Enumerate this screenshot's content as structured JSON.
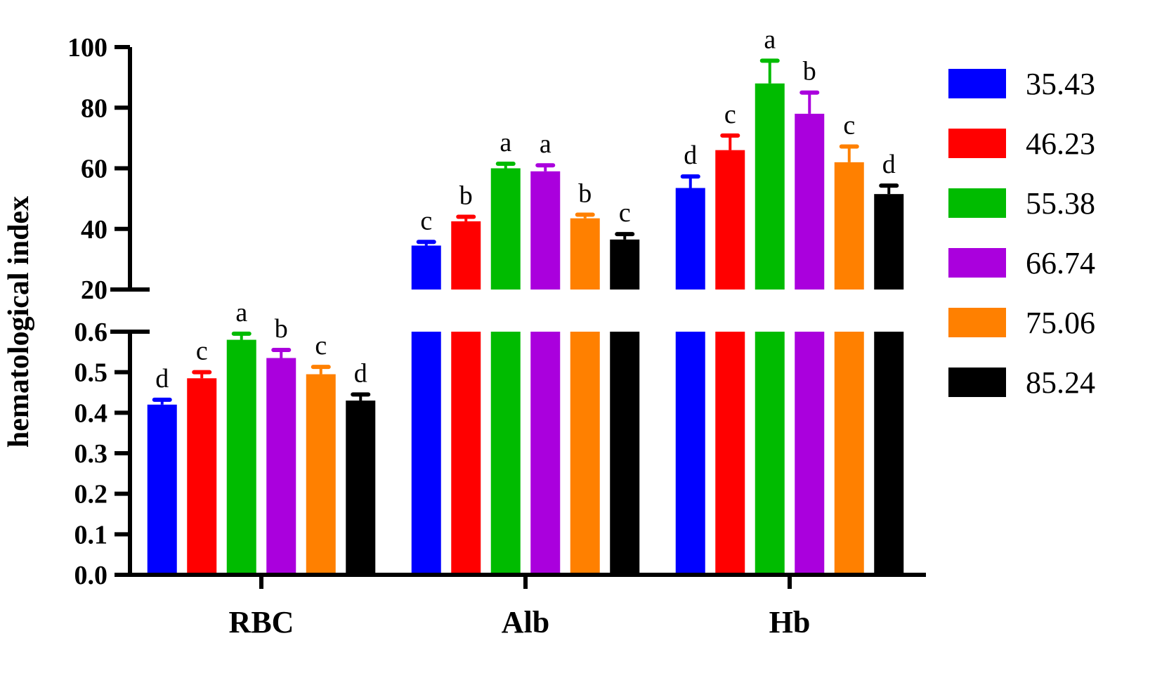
{
  "chart_data": {
    "type": "bar",
    "ylabel": "hematological index",
    "xlabel": "",
    "categories": [
      "RBC",
      "Alb",
      "Hb"
    ],
    "y_axis": {
      "broken": true,
      "lower_segment": {
        "ylim": [
          0.0,
          0.6
        ],
        "ticks": [
          "0.0",
          "0.1",
          "0.2",
          "0.3",
          "0.4",
          "0.5",
          "0.6"
        ]
      },
      "upper_segment": {
        "ylim": [
          20,
          100
        ],
        "ticks": [
          "20",
          "40",
          "60",
          "80",
          "100"
        ]
      }
    },
    "legend_position": "right",
    "series": [
      {
        "name": "35.43",
        "color": "#0000ff",
        "values": [
          0.42,
          34.5,
          53.5
        ],
        "errors": [
          0.012,
          1.2,
          3.8
        ],
        "letters": [
          "d",
          "c",
          "d"
        ]
      },
      {
        "name": "46.23",
        "color": "#ff0000",
        "values": [
          0.485,
          42.5,
          66.0
        ],
        "errors": [
          0.015,
          1.5,
          4.8
        ],
        "letters": [
          "c",
          "b",
          "c"
        ]
      },
      {
        "name": "55.38",
        "color": "#00bb00",
        "values": [
          0.58,
          60.0,
          88.0
        ],
        "errors": [
          0.015,
          1.5,
          7.5
        ],
        "letters": [
          "a",
          "a",
          "a"
        ]
      },
      {
        "name": "66.74",
        "color": "#aa00dd",
        "values": [
          0.535,
          59.0,
          78.0
        ],
        "errors": [
          0.02,
          2.0,
          7.0
        ],
        "letters": [
          "b",
          "a",
          "b"
        ]
      },
      {
        "name": "75.06",
        "color": "#ff8000",
        "values": [
          0.495,
          43.5,
          62.0
        ],
        "errors": [
          0.018,
          1.2,
          5.2
        ],
        "letters": [
          "c",
          "b",
          "c"
        ]
      },
      {
        "name": "85.24",
        "color": "#000000",
        "values": [
          0.43,
          36.5,
          51.5
        ],
        "errors": [
          0.015,
          1.8,
          2.8
        ],
        "letters": [
          "d",
          "c",
          "d"
        ]
      }
    ]
  }
}
